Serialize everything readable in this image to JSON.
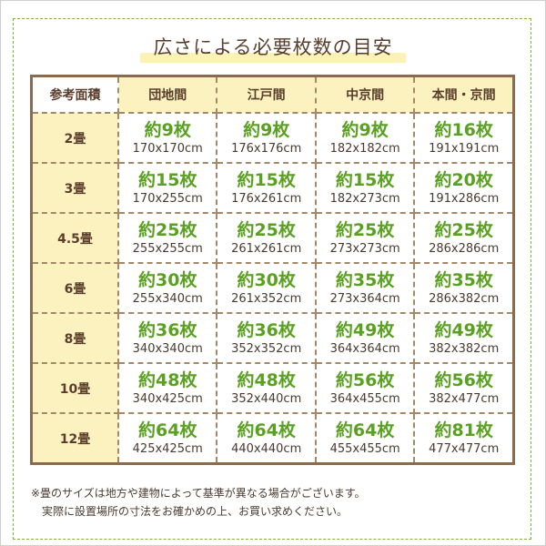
{
  "title": "広さによる必要枚数の目安",
  "header": {
    "corner": "参考面積",
    "columns": [
      "団地間",
      "江戸間",
      "中京間",
      "本間・京間"
    ]
  },
  "rows": [
    {
      "area": "2畳",
      "cells": [
        {
          "count": "約9枚",
          "size": "170x170cm"
        },
        {
          "count": "約9枚",
          "size": "176x176cm"
        },
        {
          "count": "約9枚",
          "size": "182x182cm"
        },
        {
          "count": "約16枚",
          "size": "191x191cm"
        }
      ]
    },
    {
      "area": "3畳",
      "cells": [
        {
          "count": "約15枚",
          "size": "170x255cm"
        },
        {
          "count": "約15枚",
          "size": "176x261cm"
        },
        {
          "count": "約15枚",
          "size": "182x273cm"
        },
        {
          "count": "約20枚",
          "size": "191x286cm"
        }
      ]
    },
    {
      "area": "4.5畳",
      "cells": [
        {
          "count": "約25枚",
          "size": "255x255cm"
        },
        {
          "count": "約25枚",
          "size": "261x261cm"
        },
        {
          "count": "約25枚",
          "size": "273x273cm"
        },
        {
          "count": "約25枚",
          "size": "286x286cm"
        }
      ]
    },
    {
      "area": "6畳",
      "cells": [
        {
          "count": "約30枚",
          "size": "255x340cm"
        },
        {
          "count": "約30枚",
          "size": "261x352cm"
        },
        {
          "count": "約35枚",
          "size": "273x364cm"
        },
        {
          "count": "約35枚",
          "size": "286x382cm"
        }
      ]
    },
    {
      "area": "8畳",
      "cells": [
        {
          "count": "約36枚",
          "size": "340x340cm"
        },
        {
          "count": "約36枚",
          "size": "352x352cm"
        },
        {
          "count": "約49枚",
          "size": "364x364cm"
        },
        {
          "count": "約49枚",
          "size": "382x382cm"
        }
      ]
    },
    {
      "area": "10畳",
      "cells": [
        {
          "count": "約48枚",
          "size": "340x425cm"
        },
        {
          "count": "約48枚",
          "size": "352x440cm"
        },
        {
          "count": "約56枚",
          "size": "364x455cm"
        },
        {
          "count": "約56枚",
          "size": "382x477cm"
        }
      ]
    },
    {
      "area": "12畳",
      "cells": [
        {
          "count": "約64枚",
          "size": "425x425cm"
        },
        {
          "count": "約64枚",
          "size": "440x440cm"
        },
        {
          "count": "約64枚",
          "size": "455x455cm"
        },
        {
          "count": "約81枚",
          "size": "477x477cm"
        }
      ]
    }
  ],
  "notes": [
    "※畳のサイズは地方や建物によって基準が異なる場合がございます。",
    "　実際に設置場所の寸法をお確かめの上、お買い求めください。"
  ],
  "colors": {
    "count": "#5aa021",
    "header_bg": "#fbf2c0",
    "text": "#5a3e2b",
    "frame": "#7fb23a"
  }
}
